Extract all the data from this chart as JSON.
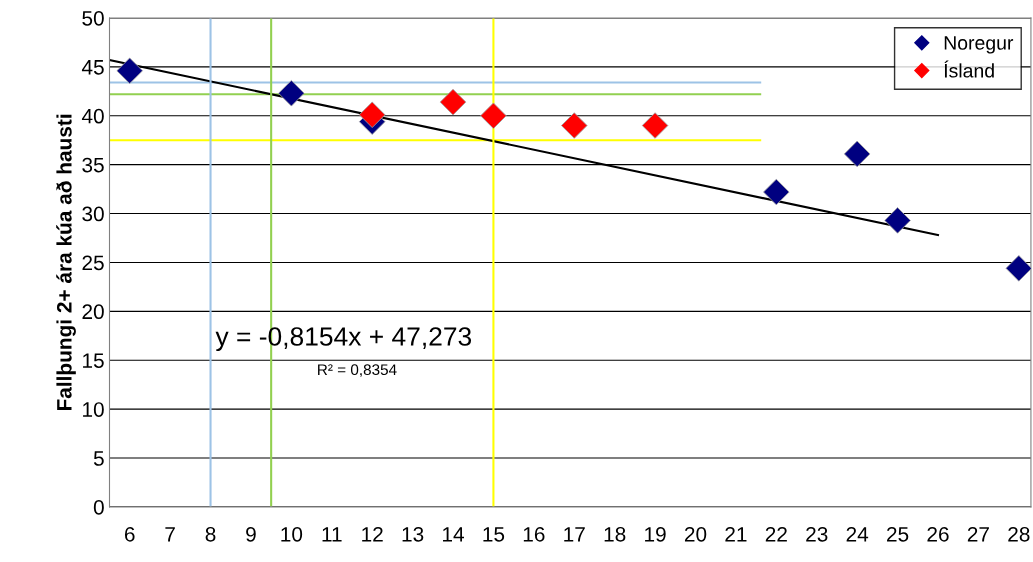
{
  "chart_data": {
    "type": "scatter",
    "ylabel": "Fallþungi 2+ ára kúa að hausti",
    "xlim": [
      5.5,
      28.3
    ],
    "xticks": [
      6,
      7,
      8,
      9,
      10,
      11,
      12,
      13,
      14,
      15,
      16,
      17,
      18,
      19,
      20,
      21,
      22,
      23,
      24,
      25,
      26,
      27,
      28
    ],
    "ylim": [
      0,
      50
    ],
    "yticks": [
      0,
      5,
      10,
      15,
      20,
      25,
      30,
      35,
      40,
      45,
      50
    ],
    "grid": "y",
    "legend": "top right",
    "marker": "diamond",
    "series": [
      {
        "type": "line",
        "marker": "none",
        "color": "#9dc3e6",
        "x": [
          5.5,
          21.6
        ],
        "values": [
          43.4,
          43.4
        ]
      },
      {
        "type": "line",
        "marker": "none",
        "color": "#92d050",
        "x": [
          5.5,
          21.6
        ],
        "values": [
          42.2,
          42.2
        ]
      },
      {
        "type": "line",
        "marker": "none",
        "color": "#ffff00",
        "x": [
          5.5,
          21.6
        ],
        "values": [
          37.5,
          37.5
        ]
      },
      {
        "name": "Noregur",
        "color": "#000080",
        "x": [
          6,
          10,
          12,
          22,
          24,
          25,
          28
        ],
        "values": [
          44.6,
          42.3,
          39.4,
          32.2,
          36.1,
          29.3,
          24.4
        ]
      },
      {
        "name": "Ísland",
        "color": "#ff0000",
        "x": [
          12,
          14,
          15,
          17,
          19
        ],
        "values": [
          40.1,
          41.4,
          40.0,
          39.0,
          39.0
        ]
      },
      {
        "type": "line",
        "marker": "none",
        "color": "#000000",
        "x": [
          5.5,
          26
        ],
        "values": [
          45.7,
          27.8
        ]
      }
    ],
    "ref_lines": [
      {
        "axis": "x",
        "value": 8,
        "color": "#9dc3e6"
      },
      {
        "axis": "x",
        "value": 9.5,
        "color": "#92d050"
      },
      {
        "axis": "x",
        "value": 15,
        "color": "#ffff00"
      }
    ],
    "annotations": [
      "y = -0,8154x + 47,273",
      "R² = 0,8354"
    ]
  }
}
